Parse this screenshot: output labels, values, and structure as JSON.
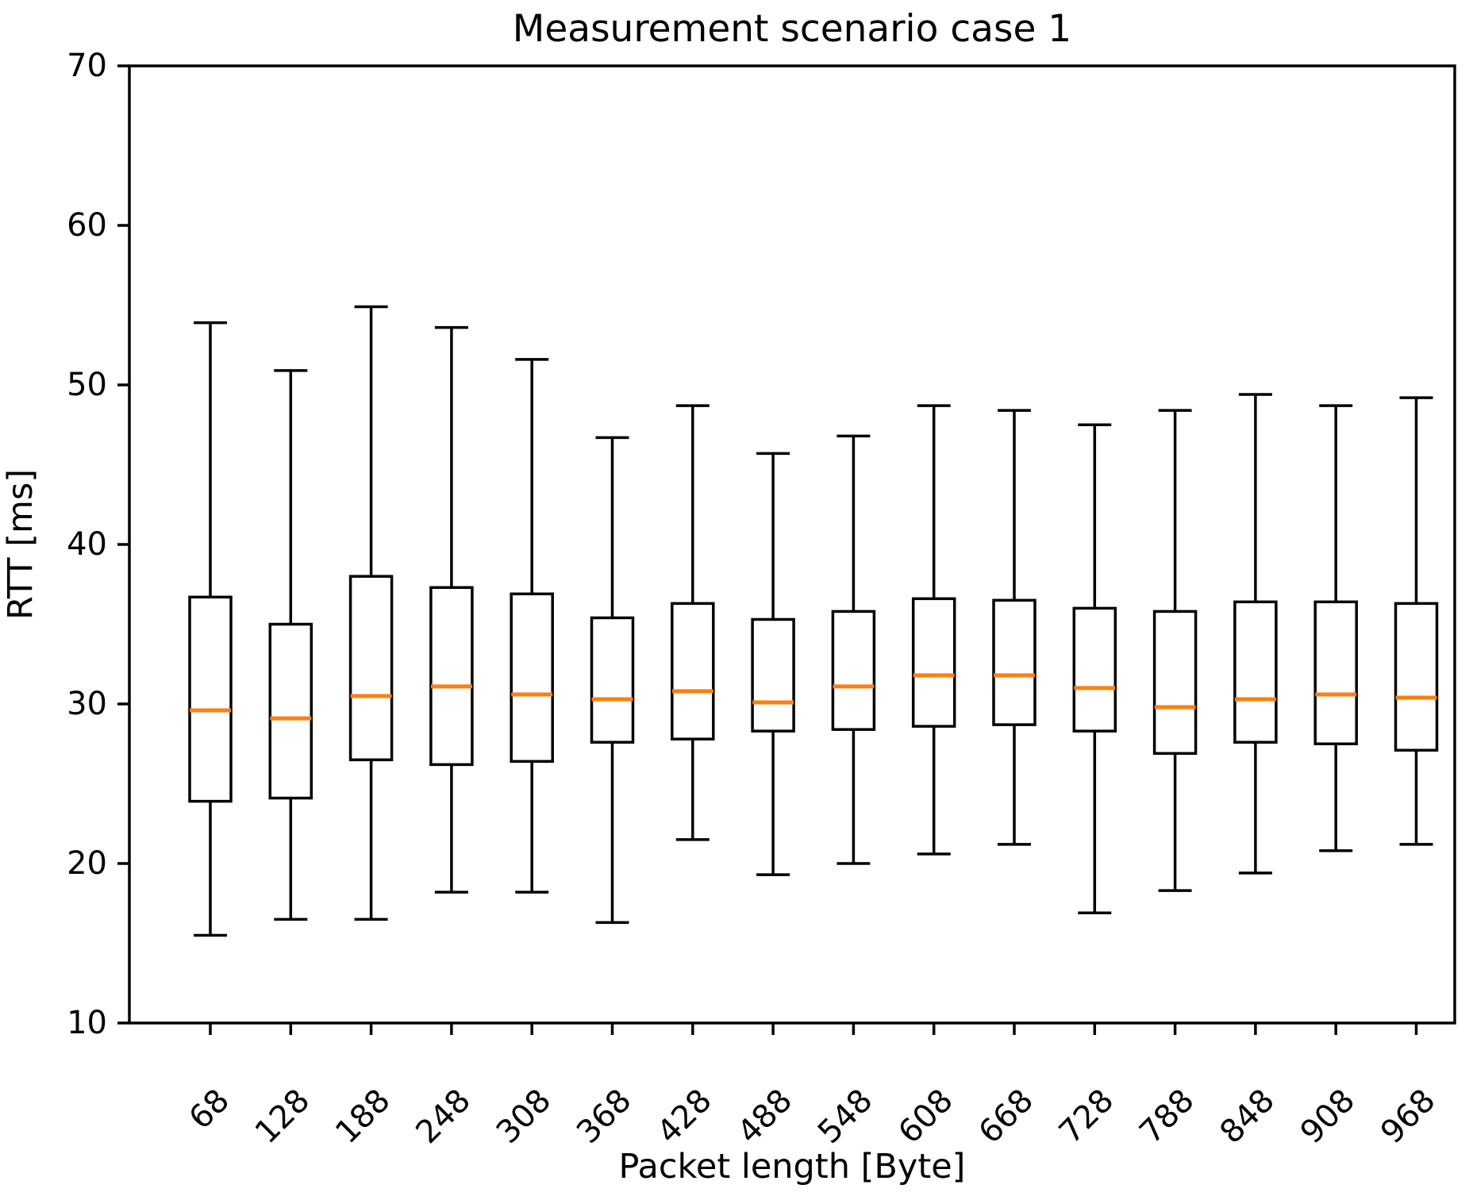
{
  "chart_data": {
    "type": "boxplot",
    "title": "Measurement scenario case 1",
    "xlabel": "Packet length [Byte]",
    "ylabel": "RTT [ms]",
    "ylim": [
      10,
      70
    ],
    "yticks": [
      10,
      20,
      30,
      40,
      50,
      60,
      70
    ],
    "x_tick_rotation_deg": 45,
    "grid": false,
    "legend": "none",
    "colors": {
      "box_edge": "#000000",
      "box_fill": "#ffffff",
      "median": "#ff7f0e",
      "axis": "#000000",
      "background": "#ffffff"
    },
    "categories": [
      "68",
      "128",
      "188",
      "248",
      "308",
      "368",
      "428",
      "488",
      "548",
      "608",
      "668",
      "728",
      "788",
      "848",
      "908",
      "968"
    ],
    "series": [
      {
        "name": "RTT",
        "boxes": [
          {
            "category": "68",
            "whisker_low": 15.5,
            "q1": 23.9,
            "median": 29.6,
            "q3": 36.7,
            "whisker_high": 53.9
          },
          {
            "category": "128",
            "whisker_low": 16.5,
            "q1": 24.1,
            "median": 29.1,
            "q3": 35.0,
            "whisker_high": 50.9
          },
          {
            "category": "188",
            "whisker_low": 16.5,
            "q1": 26.5,
            "median": 30.5,
            "q3": 38.0,
            "whisker_high": 54.9
          },
          {
            "category": "248",
            "whisker_low": 18.2,
            "q1": 26.2,
            "median": 31.1,
            "q3": 37.3,
            "whisker_high": 53.6
          },
          {
            "category": "308",
            "whisker_low": 18.2,
            "q1": 26.4,
            "median": 30.6,
            "q3": 36.9,
            "whisker_high": 51.6
          },
          {
            "category": "368",
            "whisker_low": 16.3,
            "q1": 27.6,
            "median": 30.3,
            "q3": 35.4,
            "whisker_high": 46.7
          },
          {
            "category": "428",
            "whisker_low": 21.5,
            "q1": 27.8,
            "median": 30.8,
            "q3": 36.3,
            "whisker_high": 48.7
          },
          {
            "category": "488",
            "whisker_low": 19.3,
            "q1": 28.3,
            "median": 30.1,
            "q3": 35.3,
            "whisker_high": 45.7
          },
          {
            "category": "548",
            "whisker_low": 20.0,
            "q1": 28.4,
            "median": 31.1,
            "q3": 35.8,
            "whisker_high": 46.8
          },
          {
            "category": "608",
            "whisker_low": 20.6,
            "q1": 28.6,
            "median": 31.8,
            "q3": 36.6,
            "whisker_high": 48.7
          },
          {
            "category": "668",
            "whisker_low": 21.2,
            "q1": 28.7,
            "median": 31.8,
            "q3": 36.5,
            "whisker_high": 48.4
          },
          {
            "category": "728",
            "whisker_low": 16.9,
            "q1": 28.3,
            "median": 31.0,
            "q3": 36.0,
            "whisker_high": 47.5
          },
          {
            "category": "788",
            "whisker_low": 18.3,
            "q1": 26.9,
            "median": 29.8,
            "q3": 35.8,
            "whisker_high": 48.4
          },
          {
            "category": "848",
            "whisker_low": 19.4,
            "q1": 27.6,
            "median": 30.3,
            "q3": 36.4,
            "whisker_high": 49.4
          },
          {
            "category": "908",
            "whisker_low": 20.8,
            "q1": 27.5,
            "median": 30.6,
            "q3": 36.4,
            "whisker_high": 48.7
          },
          {
            "category": "968",
            "whisker_low": 21.2,
            "q1": 27.1,
            "median": 30.4,
            "q3": 36.3,
            "whisker_high": 49.2
          }
        ]
      }
    ]
  }
}
